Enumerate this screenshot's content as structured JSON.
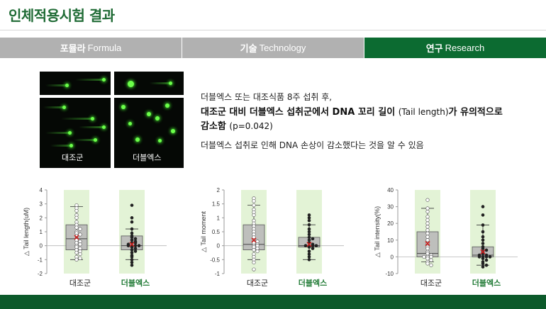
{
  "page": {
    "title": "인체적용시험 결과"
  },
  "tabs": [
    {
      "ko": "포뮬라",
      "en": "Formula",
      "active": false
    },
    {
      "ko": "기술",
      "en": "Technology",
      "active": false
    },
    {
      "ko": "연구",
      "en": "Research",
      "active": true
    }
  ],
  "images": {
    "control_label": "대조군",
    "treatment_label": "더블엑스"
  },
  "description": {
    "line1": "더블엑스 또는 대조식품 8주 섭취 후,",
    "line2_a": "대조군 대비 더블엑스 섭취군에서 DNA 꼬리 길이 ",
    "line2_b": "(Tail length)",
    "line2_c": "가 유의적으로",
    "line3_a": "감소함 ",
    "line3_b": "(p=0.042)",
    "line4": "더블엑스 섭취로 인해 DNA 손상이 감소했다는 것을 알 수 있음"
  },
  "colors": {
    "brand_green": "#0c6b31",
    "tab_gray": "#b1b1b1",
    "band": "#e3f3d6",
    "mean_marker": "#cc1f1f"
  },
  "chart_data": [
    {
      "type": "box",
      "ylabel": "△ Tail length(uM)",
      "ylim": [
        -2,
        4
      ],
      "yticks": [
        -2,
        -1,
        0,
        1,
        2,
        3,
        4
      ],
      "categories": [
        "대조군",
        "더블엑스"
      ],
      "boxes": [
        {
          "q1": -0.3,
          "median": 0.5,
          "q3": 1.5,
          "whisker_low": -1.0,
          "whisker_high": 2.8,
          "mean": 0.6
        },
        {
          "q1": -0.3,
          "median": 0.0,
          "q3": 0.7,
          "whisker_low": -1.0,
          "whisker_high": 1.2,
          "mean": 0.1
        }
      ],
      "points": [
        [
          2.9,
          2.7,
          2.5,
          2.2,
          2.0,
          1.7,
          1.5,
          1.3,
          1.2,
          1.0,
          0.9,
          0.8,
          0.7,
          0.5,
          0.4,
          0.3,
          0.2,
          0.1,
          0.0,
          -0.1,
          -0.2,
          -0.3,
          -0.4,
          -0.5,
          -0.6,
          -0.8,
          -0.9,
          -1.0
        ],
        [
          2.9,
          2.0,
          1.7,
          1.2,
          0.9,
          0.7,
          0.6,
          0.5,
          0.4,
          0.3,
          0.2,
          0.2,
          0.1,
          0.0,
          0.0,
          0.0,
          0.0,
          -0.1,
          -0.2,
          -0.3,
          -0.4,
          -0.5,
          -0.7,
          -0.8,
          -1.0,
          -1.2,
          -1.4
        ]
      ]
    },
    {
      "type": "box",
      "ylabel": "△ Tail moment",
      "ylim": [
        -1.0,
        2.0
      ],
      "yticks": [
        -1.0,
        -0.5,
        0.0,
        0.5,
        1.0,
        1.5,
        2.0
      ],
      "categories": [
        "대조군",
        "더블엑스"
      ],
      "boxes": [
        {
          "q1": -0.15,
          "median": 0.05,
          "q3": 0.75,
          "whisker_low": -0.5,
          "whisker_high": 1.45,
          "mean": 0.2
        },
        {
          "q1": -0.05,
          "median": 0.0,
          "q3": 0.3,
          "whisker_low": -0.5,
          "whisker_high": 0.75,
          "mean": 0.05
        }
      ],
      "points": [
        [
          1.7,
          1.6,
          1.45,
          1.3,
          1.2,
          1.1,
          0.9,
          0.8,
          0.7,
          0.6,
          0.5,
          0.4,
          0.3,
          0.2,
          0.15,
          0.1,
          0.05,
          0.0,
          0.0,
          -0.05,
          -0.1,
          -0.15,
          -0.2,
          -0.3,
          -0.4,
          -0.5,
          -0.6,
          -0.85
        ],
        [
          1.1,
          1.0,
          0.9,
          0.75,
          0.6,
          0.5,
          0.4,
          0.3,
          0.25,
          0.2,
          0.1,
          0.05,
          0.0,
          0.0,
          0.0,
          0.0,
          -0.05,
          -0.1,
          -0.2,
          -0.3,
          -0.4,
          -0.5
        ]
      ]
    },
    {
      "type": "box",
      "ylabel": "△ Tail intensity(%)",
      "ylim": [
        -10,
        40
      ],
      "yticks": [
        -10,
        0,
        10,
        20,
        30,
        40
      ],
      "categories": [
        "대조군",
        "더블엑스"
      ],
      "boxes": [
        {
          "q1": 0,
          "median": 2,
          "q3": 15,
          "whisker_low": -3,
          "whisker_high": 29,
          "mean": 8
        },
        {
          "q1": 0,
          "median": 1,
          "q3": 6,
          "whisker_low": -5,
          "whisker_high": 19,
          "mean": 3
        }
      ],
      "points": [
        [
          34,
          29,
          27,
          24,
          22,
          20,
          18,
          16,
          14,
          12,
          10,
          8,
          6,
          5,
          3,
          2,
          1,
          0,
          0,
          0,
          -1,
          -2,
          -3,
          -4,
          -5
        ],
        [
          30,
          25,
          19,
          15,
          12,
          10,
          8,
          6,
          5,
          4,
          3,
          2,
          1,
          1,
          0,
          0,
          0,
          0,
          -1,
          -2,
          -3,
          -4,
          -5,
          -6
        ]
      ]
    }
  ]
}
